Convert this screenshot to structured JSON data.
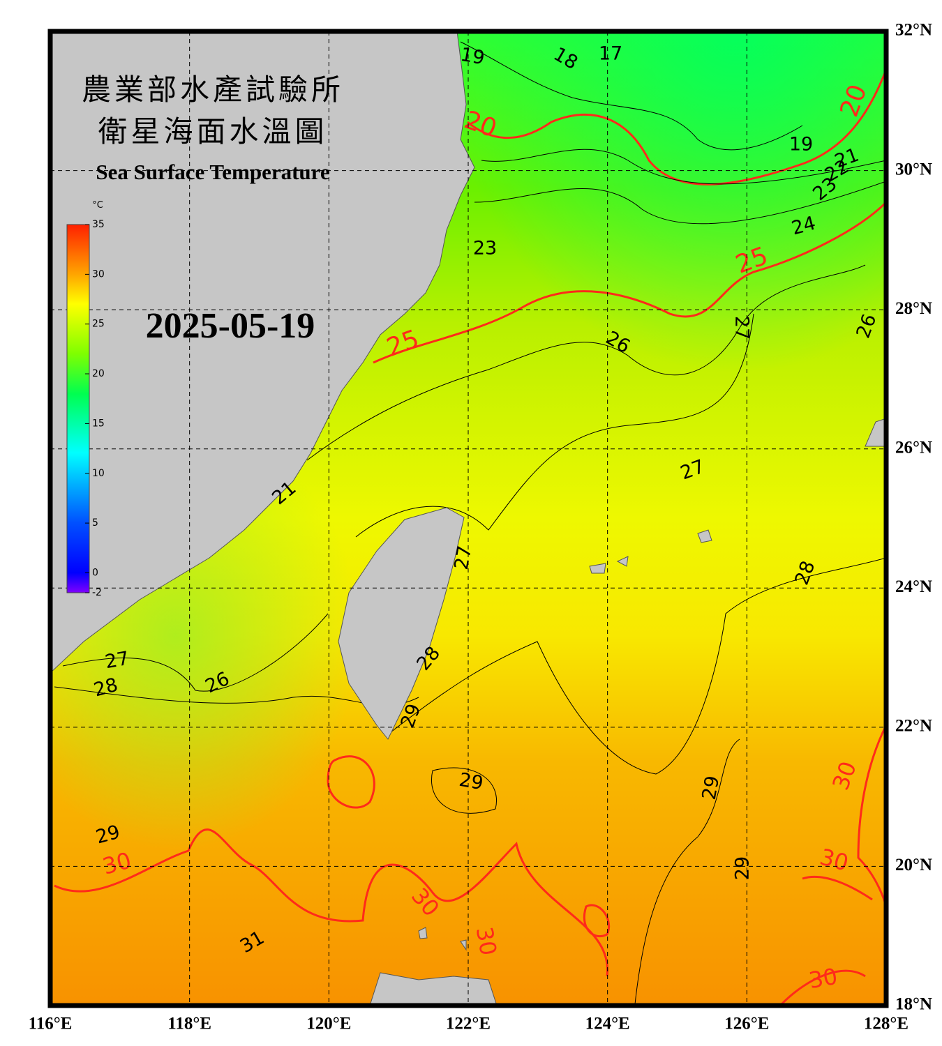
{
  "header": {
    "title_lines": [
      "農業部水產試驗所",
      "衛星海面水溫圖"
    ],
    "subtitle": "Sea Surface Temperature"
  },
  "date": "2025-05-19",
  "colorbar": {
    "unit": "°C",
    "ticks": [
      35,
      30,
      25,
      20,
      15,
      10,
      5,
      0,
      -2
    ],
    "range": [
      -2,
      35
    ]
  },
  "map": {
    "lon_labels": [
      "116°E",
      "118°E",
      "120°E",
      "122°E",
      "124°E",
      "126°E",
      "128°E"
    ],
    "lat_labels": [
      "32°N",
      "30°N",
      "28°N",
      "26°N",
      "24°N",
      "22°N",
      "20°N",
      "18°N"
    ]
  },
  "contour_labels": [
    "19",
    "18",
    "17",
    "20",
    "19",
    "20",
    "21",
    "22",
    "23",
    "24",
    "25",
    "23",
    "25",
    "26",
    "27",
    "26",
    "27",
    "28",
    "27",
    "28",
    "29",
    "29",
    "29",
    "29",
    "30",
    "30",
    "30",
    "30",
    "30",
    "30",
    "31",
    "29",
    "27",
    "28",
    "26",
    "21"
  ]
}
